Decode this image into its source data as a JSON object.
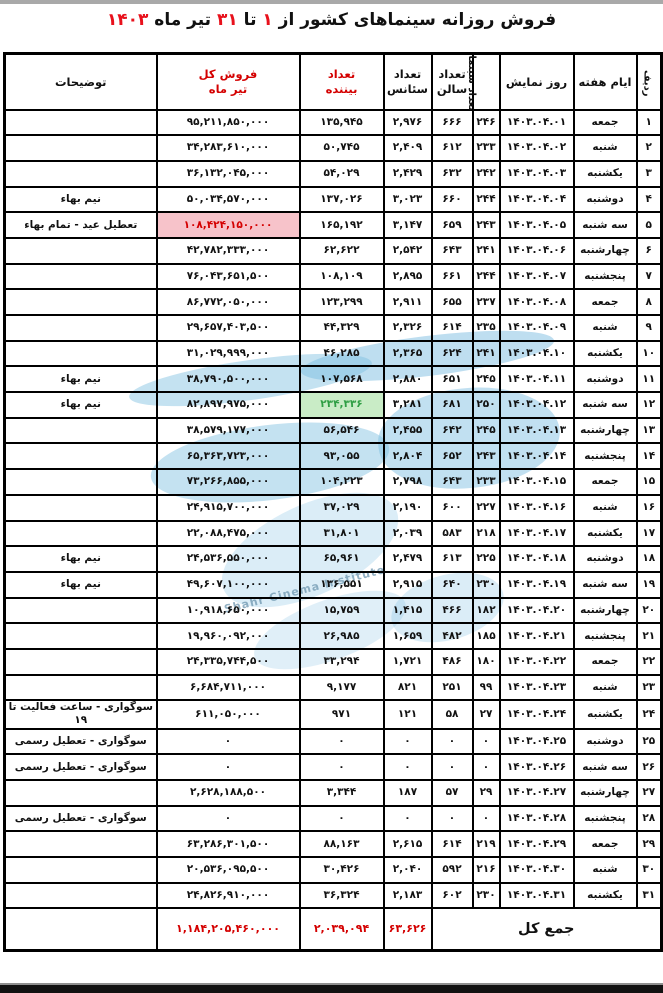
{
  "title": {
    "full": "فروش روزانه سینماهای کشور از ۱ تا ۳۱ تیر ماه ۱۴۰۳",
    "segments": [
      {
        "text": "فروش روزانه سینماهای کشور از ",
        "red": false
      },
      {
        "text": "۱",
        "red": true
      },
      {
        "text": " تا ",
        "red": false
      },
      {
        "text": "۳۱",
        "red": true
      },
      {
        "text": " تیر ماه ",
        "red": false
      },
      {
        "text": "۱۴۰۳",
        "red": true
      }
    ]
  },
  "colors": {
    "header_red": "#d40000",
    "title_red": "#e8111c",
    "pink_highlight_bg": "#f7c3ca",
    "green_highlight_bg": "#c9ecc6",
    "green_highlight_text": "#2f9e44",
    "watermark_blue": "#7dbee1",
    "border": "#000000"
  },
  "watermark": {
    "text": "Shahr Cinema Institute"
  },
  "table": {
    "columns": [
      {
        "key": "n",
        "label": "ردیف",
        "vertical": true,
        "red": false
      },
      {
        "key": "day",
        "label": "ایام هفته",
        "red": false
      },
      {
        "key": "date",
        "label": "روز نمایش",
        "red": false
      },
      {
        "key": "cinemas",
        "label": "تعداد سینما",
        "vertical": true,
        "red": false
      },
      {
        "key": "halls",
        "label": "تعداد سالن",
        "lines": [
          "تعداد",
          "سالن"
        ],
        "red": false
      },
      {
        "key": "sessions",
        "label": "تعداد سئانس",
        "lines": [
          "تعداد",
          "سئانس"
        ],
        "red": false
      },
      {
        "key": "viewers",
        "label": "تعداد بیننده",
        "lines": [
          "تعداد",
          "بیننده"
        ],
        "red": true
      },
      {
        "key": "sales",
        "label": "فروش کل تیر ماه",
        "lines": [
          "فروش کل",
          "تیر ماه"
        ],
        "red": true
      },
      {
        "key": "notes",
        "label": "توضیحات",
        "red": false
      }
    ],
    "rows": [
      {
        "n": "۱",
        "day": "جمعه",
        "date": "۱۴۰۳.۰۴.۰۱",
        "cinemas": "۲۴۶",
        "halls": "۶۶۶",
        "sessions": "۲,۹۷۶",
        "viewers": "۱۳۵,۹۴۵",
        "sales": "۹۵,۲۱۱,۸۵۰,۰۰۰",
        "notes": "",
        "hl": ""
      },
      {
        "n": "۲",
        "day": "شنبه",
        "date": "۱۴۰۳.۰۴.۰۲",
        "cinemas": "۲۳۳",
        "halls": "۶۱۲",
        "sessions": "۲,۴۰۹",
        "viewers": "۵۰,۷۴۵",
        "sales": "۳۴,۲۸۳,۶۱۰,۰۰۰",
        "notes": "",
        "hl": ""
      },
      {
        "n": "۳",
        "day": "یکشنبه",
        "date": "۱۴۰۳.۰۴.۰۳",
        "cinemas": "۲۴۲",
        "halls": "۶۳۲",
        "sessions": "۲,۴۲۹",
        "viewers": "۵۴,۰۲۹",
        "sales": "۳۶,۱۳۲,۰۴۵,۰۰۰",
        "notes": "",
        "hl": ""
      },
      {
        "n": "۴",
        "day": "دوشنبه",
        "date": "۱۴۰۳.۰۴.۰۴",
        "cinemas": "۲۴۴",
        "halls": "۶۶۰",
        "sessions": "۳,۰۲۳",
        "viewers": "۱۳۷,۰۲۶",
        "sales": "۵۰,۰۳۴,۵۷۰,۰۰۰",
        "notes": "نیم بهاء",
        "hl": ""
      },
      {
        "n": "۵",
        "day": "سه شنبه",
        "date": "۱۴۰۳.۰۴.۰۵",
        "cinemas": "۲۴۳",
        "halls": "۶۵۹",
        "sessions": "۳,۱۴۷",
        "viewers": "۱۶۵,۱۹۲",
        "sales": "۱۰۸,۴۲۴,۱۵۰,۰۰۰",
        "notes": "تعطیل عید - تمام بهاء",
        "hl": "pink-sales"
      },
      {
        "n": "۶",
        "day": "چهارشنبه",
        "date": "۱۴۰۳.۰۴.۰۶",
        "cinemas": "۲۴۱",
        "halls": "۶۴۳",
        "sessions": "۲,۵۴۲",
        "viewers": "۶۲,۶۲۲",
        "sales": "۴۲,۷۸۲,۳۳۳,۰۰۰",
        "notes": "",
        "hl": ""
      },
      {
        "n": "۷",
        "day": "پنجشنبه",
        "date": "۱۴۰۳.۰۴.۰۷",
        "cinemas": "۲۴۴",
        "halls": "۶۶۱",
        "sessions": "۲,۸۹۵",
        "viewers": "۱۰۸,۱۰۹",
        "sales": "۷۶,۰۴۳,۶۵۱,۵۰۰",
        "notes": "",
        "hl": ""
      },
      {
        "n": "۸",
        "day": "جمعه",
        "date": "۱۴۰۳.۰۴.۰۸",
        "cinemas": "۲۳۷",
        "halls": "۶۵۵",
        "sessions": "۲,۹۱۱",
        "viewers": "۱۲۳,۲۹۹",
        "sales": "۸۶,۷۷۲,۰۵۰,۰۰۰",
        "notes": "",
        "hl": ""
      },
      {
        "n": "۹",
        "day": "شنبه",
        "date": "۱۴۰۳.۰۴.۰۹",
        "cinemas": "۲۳۵",
        "halls": "۶۱۴",
        "sessions": "۲,۳۲۶",
        "viewers": "۴۴,۳۲۹",
        "sales": "۲۹,۶۵۷,۴۰۳,۵۰۰",
        "notes": "",
        "hl": ""
      },
      {
        "n": "۱۰",
        "day": "یکشنبه",
        "date": "۱۴۰۳.۰۴.۱۰",
        "cinemas": "۲۴۱",
        "halls": "۶۲۴",
        "sessions": "۲,۳۶۵",
        "viewers": "۴۶,۲۸۵",
        "sales": "۳۱,۰۲۹,۹۹۹,۰۰۰",
        "notes": "",
        "hl": ""
      },
      {
        "n": "۱۱",
        "day": "دوشنبه",
        "date": "۱۴۰۳.۰۴.۱۱",
        "cinemas": "۲۴۵",
        "halls": "۶۵۱",
        "sessions": "۲,۸۸۰",
        "viewers": "۱۰۷,۵۶۸",
        "sales": "۳۸,۷۹۰,۵۰۰,۰۰۰",
        "notes": "نیم بهاء",
        "hl": ""
      },
      {
        "n": "۱۲",
        "day": "سه شنبه",
        "date": "۱۴۰۳.۰۴.۱۲",
        "cinemas": "۲۵۰",
        "halls": "۶۸۱",
        "sessions": "۳,۲۸۱",
        "viewers": "۲۳۴,۳۳۶",
        "sales": "۸۲,۸۹۷,۹۷۵,۰۰۰",
        "notes": "نیم بهاء",
        "hl": "green-viewers"
      },
      {
        "n": "۱۳",
        "day": "چهارشنبه",
        "date": "۱۴۰۳.۰۴.۱۳",
        "cinemas": "۲۴۵",
        "halls": "۶۴۲",
        "sessions": "۲,۴۵۵",
        "viewers": "۵۶,۵۴۶",
        "sales": "۳۸,۵۷۹,۱۷۷,۰۰۰",
        "notes": "",
        "hl": ""
      },
      {
        "n": "۱۴",
        "day": "پنجشنبه",
        "date": "۱۴۰۳.۰۴.۱۴",
        "cinemas": "۲۴۳",
        "halls": "۶۵۲",
        "sessions": "۲,۸۰۴",
        "viewers": "۹۳,۰۵۵",
        "sales": "۶۵,۳۶۳,۷۲۳,۰۰۰",
        "notes": "",
        "hl": ""
      },
      {
        "n": "۱۵",
        "day": "جمعه",
        "date": "۱۴۰۳.۰۴.۱۵",
        "cinemas": "۲۳۳",
        "halls": "۶۴۳",
        "sessions": "۲,۷۹۸",
        "viewers": "۱۰۴,۲۲۳",
        "sales": "۷۳,۲۶۶,۸۵۵,۰۰۰",
        "notes": "",
        "hl": ""
      },
      {
        "n": "۱۶",
        "day": "شنبه",
        "date": "۱۴۰۳.۰۴.۱۶",
        "cinemas": "۲۲۷",
        "halls": "۶۰۰",
        "sessions": "۲,۱۹۰",
        "viewers": "۳۷,۰۲۹",
        "sales": "۲۴,۹۱۵,۷۰۰,۰۰۰",
        "notes": "",
        "hl": ""
      },
      {
        "n": "۱۷",
        "day": "یکشنبه",
        "date": "۱۴۰۳.۰۴.۱۷",
        "cinemas": "۲۱۸",
        "halls": "۵۸۳",
        "sessions": "۲,۰۳۹",
        "viewers": "۳۱,۸۰۱",
        "sales": "۲۲,۰۸۸,۴۷۵,۰۰۰",
        "notes": "",
        "hl": ""
      },
      {
        "n": "۱۸",
        "day": "دوشنبه",
        "date": "۱۴۰۳.۰۴.۱۸",
        "cinemas": "۲۲۵",
        "halls": "۶۱۳",
        "sessions": "۲,۴۷۹",
        "viewers": "۶۵,۹۶۱",
        "sales": "۲۴,۵۳۶,۵۵۰,۰۰۰",
        "notes": "نیم بهاء",
        "hl": ""
      },
      {
        "n": "۱۹",
        "day": "سه شنبه",
        "date": "۱۴۰۳.۰۴.۱۹",
        "cinemas": "۲۳۰",
        "halls": "۶۴۰",
        "sessions": "۲,۹۱۵",
        "viewers": "۱۳۶,۵۵۱",
        "sales": "۴۹,۶۰۷,۱۰۰,۰۰۰",
        "notes": "نیم بهاء",
        "hl": ""
      },
      {
        "n": "۲۰",
        "day": "چهارشنبه",
        "date": "۱۴۰۳.۰۴.۲۰",
        "cinemas": "۱۸۲",
        "halls": "۴۶۶",
        "sessions": "۱,۴۱۵",
        "viewers": "۱۵,۷۵۹",
        "sales": "۱۰,۹۱۸,۶۵۰,۰۰۰",
        "notes": "",
        "hl": ""
      },
      {
        "n": "۲۱",
        "day": "پنجشنبه",
        "date": "۱۴۰۳.۰۴.۲۱",
        "cinemas": "۱۸۵",
        "halls": "۴۸۲",
        "sessions": "۱,۶۵۹",
        "viewers": "۲۶,۹۸۵",
        "sales": "۱۹,۹۶۰,۰۹۲,۰۰۰",
        "notes": "",
        "hl": ""
      },
      {
        "n": "۲۲",
        "day": "جمعه",
        "date": "۱۴۰۳.۰۴.۲۲",
        "cinemas": "۱۸۰",
        "halls": "۴۸۶",
        "sessions": "۱,۷۲۱",
        "viewers": "۳۳,۲۹۴",
        "sales": "۲۴,۳۳۵,۷۴۴,۵۰۰",
        "notes": "",
        "hl": ""
      },
      {
        "n": "۲۳",
        "day": "شنبه",
        "date": "۱۴۰۳.۰۴.۲۳",
        "cinemas": "۹۹",
        "halls": "۲۵۱",
        "sessions": "۸۲۱",
        "viewers": "۹,۱۷۷",
        "sales": "۶,۶۸۴,۷۱۱,۰۰۰",
        "notes": "",
        "hl": ""
      },
      {
        "n": "۲۴",
        "day": "یکشنبه",
        "date": "۱۴۰۳.۰۴.۲۴",
        "cinemas": "۲۷",
        "halls": "۵۸",
        "sessions": "۱۲۱",
        "viewers": "۹۷۱",
        "sales": "۶۱۱,۰۵۰,۰۰۰",
        "notes": "سوگواری - ساعت فعالیت تا ۱۹",
        "hl": ""
      },
      {
        "n": "۲۵",
        "day": "دوشنبه",
        "date": "۱۴۰۳.۰۴.۲۵",
        "cinemas": "۰",
        "halls": "۰",
        "sessions": "۰",
        "viewers": "۰",
        "sales": "۰",
        "notes": "سوگواری - تعطیل رسمی",
        "hl": ""
      },
      {
        "n": "۲۶",
        "day": "سه شنبه",
        "date": "۱۴۰۳.۰۴.۲۶",
        "cinemas": "۰",
        "halls": "۰",
        "sessions": "۰",
        "viewers": "۰",
        "sales": "۰",
        "notes": "سوگواری - تعطیل رسمی",
        "hl": ""
      },
      {
        "n": "۲۷",
        "day": "چهارشنبه",
        "date": "۱۴۰۳.۰۴.۲۷",
        "cinemas": "۲۹",
        "halls": "۵۷",
        "sessions": "۱۸۷",
        "viewers": "۳,۳۴۴",
        "sales": "۲,۶۲۸,۱۸۸,۵۰۰",
        "notes": "",
        "hl": ""
      },
      {
        "n": "۲۸",
        "day": "پنجشنبه",
        "date": "۱۴۰۳.۰۴.۲۸",
        "cinemas": "۰",
        "halls": "۰",
        "sessions": "۰",
        "viewers": "۰",
        "sales": "۰",
        "notes": "سوگواری - تعطیل رسمی",
        "hl": ""
      },
      {
        "n": "۲۹",
        "day": "جمعه",
        "date": "۱۴۰۳.۰۴.۲۹",
        "cinemas": "۲۱۹",
        "halls": "۶۱۴",
        "sessions": "۲,۶۱۵",
        "viewers": "۸۸,۱۶۳",
        "sales": "۶۳,۲۸۶,۳۰۱,۵۰۰",
        "notes": "",
        "hl": ""
      },
      {
        "n": "۳۰",
        "day": "شنبه",
        "date": "۱۴۰۳.۰۴.۳۰",
        "cinemas": "۲۱۶",
        "halls": "۵۹۲",
        "sessions": "۲,۰۴۰",
        "viewers": "۳۰,۴۲۶",
        "sales": "۲۰,۵۳۶,۰۹۵,۵۰۰",
        "notes": "",
        "hl": ""
      },
      {
        "n": "۳۱",
        "day": "یکشنبه",
        "date": "۱۴۰۳.۰۴.۳۱",
        "cinemas": "۲۳۰",
        "halls": "۶۰۲",
        "sessions": "۲,۱۸۳",
        "viewers": "۳۶,۳۲۴",
        "sales": "۲۴,۸۲۶,۹۱۰,۰۰۰",
        "notes": "",
        "hl": ""
      }
    ],
    "totals": {
      "label": "جمع کل",
      "sessions": "۶۳,۶۲۶",
      "viewers": "۲,۰۳۹,۰۹۴",
      "sales": "۱,۱۸۴,۲۰۵,۴۶۰,۰۰۰",
      "notes": ""
    }
  }
}
